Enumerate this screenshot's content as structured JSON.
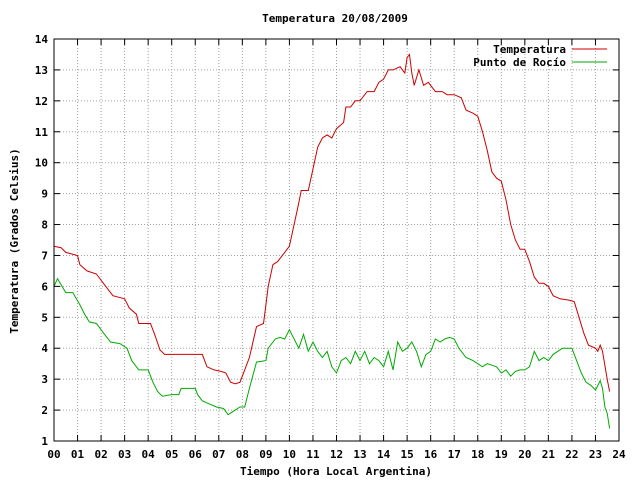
{
  "chart_data": {
    "type": "line",
    "title": "Temperatura 20/08/2009",
    "xlabel": "Tiempo (Hora Local Argentina)",
    "ylabel": "Temperatura (Grados Celsius)",
    "xlim": [
      0,
      24
    ],
    "ylim": [
      1,
      14
    ],
    "xticks": [
      0,
      1,
      2,
      3,
      4,
      5,
      6,
      7,
      8,
      9,
      10,
      11,
      12,
      13,
      14,
      15,
      16,
      17,
      18,
      19,
      20,
      21,
      22,
      23,
      24
    ],
    "xtick_labels": [
      "00",
      "01",
      "02",
      "03",
      "04",
      "05",
      "06",
      "07",
      "08",
      "09",
      "10",
      "11",
      "12",
      "13",
      "14",
      "15",
      "16",
      "17",
      "18",
      "19",
      "20",
      "21",
      "22",
      "23",
      "24"
    ],
    "yticks": [
      1,
      2,
      3,
      4,
      5,
      6,
      7,
      8,
      9,
      10,
      11,
      12,
      13,
      14
    ],
    "ytick_labels": [
      "1",
      "2",
      "3",
      "4",
      "5",
      "6",
      "7",
      "8",
      "9",
      "10",
      "11",
      "12",
      "13",
      "14"
    ],
    "grid": true,
    "legend_position": "top-right",
    "series": [
      {
        "name": "Temperatura",
        "color": "#cc0000",
        "points": [
          [
            0.0,
            7.3
          ],
          [
            0.3,
            7.25
          ],
          [
            0.5,
            7.1
          ],
          [
            1.0,
            7.0
          ],
          [
            1.1,
            6.7
          ],
          [
            1.4,
            6.5
          ],
          [
            1.8,
            6.4
          ],
          [
            2.1,
            6.1
          ],
          [
            2.5,
            5.7
          ],
          [
            3.0,
            5.6
          ],
          [
            3.2,
            5.3
          ],
          [
            3.5,
            5.1
          ],
          [
            3.6,
            4.8
          ],
          [
            4.1,
            4.8
          ],
          [
            4.3,
            4.4
          ],
          [
            4.5,
            3.95
          ],
          [
            4.7,
            3.8
          ],
          [
            5.1,
            3.8
          ],
          [
            5.5,
            3.8
          ],
          [
            6.0,
            3.8
          ],
          [
            6.3,
            3.8
          ],
          [
            6.5,
            3.4
          ],
          [
            6.8,
            3.3
          ],
          [
            7.1,
            3.25
          ],
          [
            7.3,
            3.2
          ],
          [
            7.5,
            2.9
          ],
          [
            7.7,
            2.85
          ],
          [
            7.9,
            2.9
          ],
          [
            8.1,
            3.3
          ],
          [
            8.3,
            3.7
          ],
          [
            8.6,
            4.7
          ],
          [
            8.9,
            4.8
          ],
          [
            9.0,
            5.4
          ],
          [
            9.1,
            6.0
          ],
          [
            9.3,
            6.7
          ],
          [
            9.5,
            6.8
          ],
          [
            9.8,
            7.1
          ],
          [
            10.0,
            7.3
          ],
          [
            10.2,
            8.0
          ],
          [
            10.4,
            8.7
          ],
          [
            10.5,
            9.1
          ],
          [
            10.8,
            9.1
          ],
          [
            11.0,
            9.8
          ],
          [
            11.2,
            10.5
          ],
          [
            11.4,
            10.8
          ],
          [
            11.6,
            10.9
          ],
          [
            11.8,
            10.8
          ],
          [
            12.0,
            11.1
          ],
          [
            12.3,
            11.3
          ],
          [
            12.4,
            11.8
          ],
          [
            12.6,
            11.8
          ],
          [
            12.8,
            12.0
          ],
          [
            13.0,
            12.0
          ],
          [
            13.3,
            12.3
          ],
          [
            13.6,
            12.3
          ],
          [
            13.8,
            12.6
          ],
          [
            14.0,
            12.7
          ],
          [
            14.2,
            13.0
          ],
          [
            14.4,
            13.0
          ],
          [
            14.7,
            13.1
          ],
          [
            14.9,
            12.9
          ],
          [
            15.0,
            13.4
          ],
          [
            15.1,
            13.5
          ],
          [
            15.2,
            12.9
          ],
          [
            15.3,
            12.5
          ],
          [
            15.5,
            13.0
          ],
          [
            15.7,
            12.5
          ],
          [
            15.9,
            12.6
          ],
          [
            16.0,
            12.5
          ],
          [
            16.2,
            12.3
          ],
          [
            16.5,
            12.3
          ],
          [
            16.7,
            12.2
          ],
          [
            17.0,
            12.2
          ],
          [
            17.3,
            12.1
          ],
          [
            17.5,
            11.7
          ],
          [
            17.8,
            11.6
          ],
          [
            18.0,
            11.5
          ],
          [
            18.2,
            11.0
          ],
          [
            18.4,
            10.4
          ],
          [
            18.6,
            9.7
          ],
          [
            18.8,
            9.5
          ],
          [
            19.0,
            9.4
          ],
          [
            19.2,
            8.8
          ],
          [
            19.4,
            8.0
          ],
          [
            19.6,
            7.5
          ],
          [
            19.8,
            7.2
          ],
          [
            20.0,
            7.2
          ],
          [
            20.2,
            6.8
          ],
          [
            20.4,
            6.3
          ],
          [
            20.6,
            6.1
          ],
          [
            20.8,
            6.1
          ],
          [
            21.0,
            6.0
          ],
          [
            21.2,
            5.7
          ],
          [
            21.5,
            5.6
          ],
          [
            21.9,
            5.55
          ],
          [
            22.1,
            5.5
          ],
          [
            22.3,
            5.0
          ],
          [
            22.5,
            4.5
          ],
          [
            22.7,
            4.1
          ],
          [
            23.0,
            4.0
          ],
          [
            23.1,
            3.9
          ],
          [
            23.2,
            4.1
          ],
          [
            23.3,
            3.9
          ],
          [
            23.5,
            3.0
          ],
          [
            23.6,
            2.6
          ]
        ]
      },
      {
        "name": "Punto de Rocío",
        "color": "#00aa00",
        "points": [
          [
            0.0,
            6.0
          ],
          [
            0.15,
            6.25
          ],
          [
            0.3,
            6.05
          ],
          [
            0.5,
            5.8
          ],
          [
            0.8,
            5.8
          ],
          [
            1.1,
            5.4
          ],
          [
            1.3,
            5.1
          ],
          [
            1.5,
            4.85
          ],
          [
            1.8,
            4.8
          ],
          [
            2.1,
            4.5
          ],
          [
            2.4,
            4.2
          ],
          [
            2.8,
            4.15
          ],
          [
            3.1,
            4.0
          ],
          [
            3.3,
            3.6
          ],
          [
            3.6,
            3.3
          ],
          [
            4.0,
            3.3
          ],
          [
            4.2,
            2.9
          ],
          [
            4.4,
            2.6
          ],
          [
            4.6,
            2.45
          ],
          [
            5.0,
            2.5
          ],
          [
            5.3,
            2.5
          ],
          [
            5.4,
            2.7
          ],
          [
            6.0,
            2.7
          ],
          [
            6.1,
            2.5
          ],
          [
            6.3,
            2.3
          ],
          [
            6.6,
            2.2
          ],
          [
            6.9,
            2.1
          ],
          [
            7.2,
            2.05
          ],
          [
            7.4,
            1.85
          ],
          [
            7.6,
            1.95
          ],
          [
            7.9,
            2.1
          ],
          [
            8.1,
            2.1
          ],
          [
            8.3,
            2.7
          ],
          [
            8.6,
            3.55
          ],
          [
            9.0,
            3.6
          ],
          [
            9.1,
            4.0
          ],
          [
            9.4,
            4.3
          ],
          [
            9.6,
            4.35
          ],
          [
            9.8,
            4.3
          ],
          [
            10.0,
            4.6
          ],
          [
            10.2,
            4.3
          ],
          [
            10.4,
            4.0
          ],
          [
            10.6,
            4.45
          ],
          [
            10.8,
            3.9
          ],
          [
            11.0,
            4.2
          ],
          [
            11.2,
            3.9
          ],
          [
            11.4,
            3.7
          ],
          [
            11.6,
            3.9
          ],
          [
            11.8,
            3.4
          ],
          [
            12.0,
            3.2
          ],
          [
            12.2,
            3.6
          ],
          [
            12.4,
            3.7
          ],
          [
            12.6,
            3.5
          ],
          [
            12.8,
            3.9
          ],
          [
            13.0,
            3.6
          ],
          [
            13.2,
            3.9
          ],
          [
            13.4,
            3.5
          ],
          [
            13.6,
            3.7
          ],
          [
            13.8,
            3.6
          ],
          [
            14.0,
            3.4
          ],
          [
            14.2,
            3.9
          ],
          [
            14.4,
            3.3
          ],
          [
            14.6,
            4.2
          ],
          [
            14.8,
            3.9
          ],
          [
            15.0,
            4.0
          ],
          [
            15.2,
            4.2
          ],
          [
            15.4,
            3.9
          ],
          [
            15.6,
            3.4
          ],
          [
            15.8,
            3.8
          ],
          [
            16.0,
            3.9
          ],
          [
            16.2,
            4.3
          ],
          [
            16.4,
            4.2
          ],
          [
            16.6,
            4.3
          ],
          [
            16.8,
            4.35
          ],
          [
            17.0,
            4.3
          ],
          [
            17.2,
            4.0
          ],
          [
            17.5,
            3.7
          ],
          [
            17.8,
            3.6
          ],
          [
            18.0,
            3.5
          ],
          [
            18.2,
            3.4
          ],
          [
            18.4,
            3.5
          ],
          [
            18.6,
            3.45
          ],
          [
            18.8,
            3.4
          ],
          [
            19.0,
            3.2
          ],
          [
            19.2,
            3.3
          ],
          [
            19.4,
            3.1
          ],
          [
            19.6,
            3.25
          ],
          [
            19.8,
            3.3
          ],
          [
            20.0,
            3.3
          ],
          [
            20.2,
            3.4
          ],
          [
            20.4,
            3.9
          ],
          [
            20.6,
            3.6
          ],
          [
            20.8,
            3.7
          ],
          [
            21.0,
            3.6
          ],
          [
            21.2,
            3.8
          ],
          [
            21.4,
            3.9
          ],
          [
            21.6,
            4.0
          ],
          [
            22.0,
            4.0
          ],
          [
            22.2,
            3.6
          ],
          [
            22.4,
            3.2
          ],
          [
            22.6,
            2.9
          ],
          [
            22.8,
            2.8
          ],
          [
            23.0,
            2.65
          ],
          [
            23.2,
            2.95
          ],
          [
            23.3,
            2.7
          ],
          [
            23.4,
            2.1
          ],
          [
            23.5,
            1.9
          ],
          [
            23.6,
            1.4
          ]
        ]
      }
    ]
  }
}
